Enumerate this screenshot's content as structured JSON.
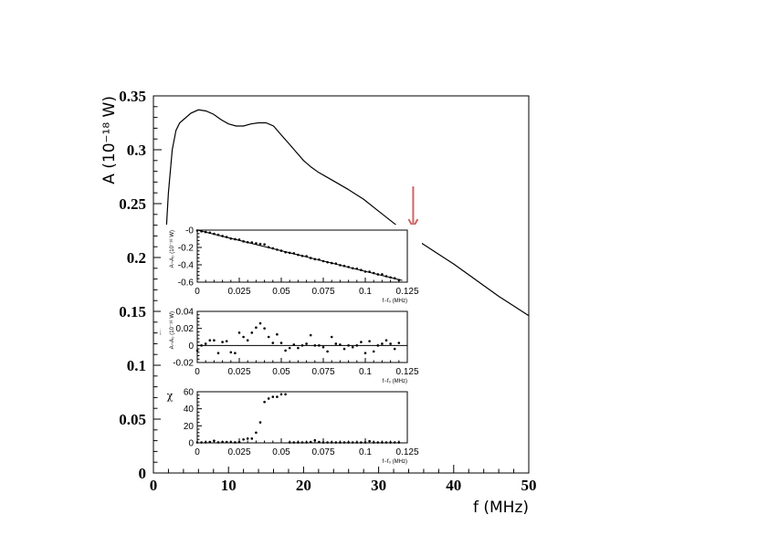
{
  "chart_data": [
    {
      "id": "main",
      "type": "line",
      "xlabel": "f (MHz)",
      "ylabel": "A (10⁻¹⁸ W)",
      "xlim": [
        0,
        50
      ],
      "ylim": [
        0,
        0.35
      ],
      "xticks": [
        0,
        10,
        20,
        30,
        40,
        50
      ],
      "xtick_labels": [
        "0",
        "10",
        "20",
        "30",
        "40",
        "50"
      ],
      "yticks": [
        0,
        0.05,
        0.1,
        0.15,
        0.2,
        0.25,
        0.3,
        0.35
      ],
      "ytick_labels": [
        "0",
        "0.05",
        "0.1",
        "0.15",
        "0.2",
        "0.25",
        "0.3",
        "0.35"
      ],
      "grid": false,
      "series": [
        {
          "color": "#000000",
          "x": [
            1.0,
            1.5,
            2.0,
            2.5,
            3.0,
            3.5,
            4.0,
            5.0,
            6.0,
            7.0,
            8.0,
            9.0,
            10.0,
            11.0,
            12.0,
            13.0,
            14.0,
            15.0,
            16.0,
            17.0,
            18.0,
            19.0,
            20.0,
            21.0,
            22.0,
            24.0,
            26.0,
            28.0,
            30.0,
            32.0,
            34.0,
            36.0,
            38.0,
            40.0,
            42.0,
            44.0,
            46.0,
            48.0,
            50.0
          ],
          "y": [
            0.128,
            0.2,
            0.26,
            0.3,
            0.318,
            0.325,
            0.328,
            0.334,
            0.337,
            0.336,
            0.333,
            0.328,
            0.324,
            0.322,
            0.322,
            0.324,
            0.325,
            0.325,
            0.322,
            0.314,
            0.306,
            0.298,
            0.29,
            0.284,
            0.279,
            0.271,
            0.263,
            0.254,
            0.243,
            0.232,
            0.221,
            0.212,
            0.203,
            0.194,
            0.184,
            0.174,
            0.164,
            0.155,
            0.146
          ]
        }
      ],
      "annotations": [
        {
          "type": "arrow",
          "color": "#cc6666",
          "x": 34.6,
          "y_head": 0.228,
          "y_tail": 0.266
        }
      ]
    },
    {
      "id": "inset1",
      "type": "scatter",
      "xlabel": "f−f₀ (MHz)",
      "ylabel": "A−A₀ (10⁻¹⁸ W)",
      "xlim": [
        0,
        0.125
      ],
      "ylim": [
        -0.6,
        0
      ],
      "xticks": [
        0,
        0.025,
        0.05,
        0.075,
        0.1,
        0.125
      ],
      "xtick_labels": [
        "0",
        "0.025",
        "0.05",
        "0.075",
        "0.1",
        "0.125"
      ],
      "yticks": [
        -0.6,
        -0.4,
        -0.2,
        0
      ],
      "ytick_labels": [
        "-0.6",
        "-0.4",
        "-0.2",
        "-0"
      ],
      "fit_line": {
        "x": [
          0,
          0.122
        ],
        "y": [
          0,
          -0.58
        ]
      },
      "series": [
        {
          "x": [
            0.0,
            0.0025,
            0.005,
            0.0075,
            0.01,
            0.0125,
            0.015,
            0.0175,
            0.02,
            0.0225,
            0.025,
            0.0275,
            0.03,
            0.0325,
            0.035,
            0.0375,
            0.04,
            0.0425,
            0.045,
            0.0475,
            0.05,
            0.0525,
            0.055,
            0.0575,
            0.06,
            0.0625,
            0.065,
            0.0675,
            0.07,
            0.0725,
            0.075,
            0.0775,
            0.08,
            0.0825,
            0.085,
            0.0875,
            0.09,
            0.0925,
            0.095,
            0.0975,
            0.1,
            0.1025,
            0.105,
            0.1075,
            0.11,
            0.1125,
            0.115,
            0.1175,
            0.12
          ],
          "y": [
            -0.004,
            -0.014,
            -0.022,
            -0.03,
            -0.043,
            -0.055,
            -0.068,
            -0.08,
            -0.098,
            -0.105,
            -0.11,
            -0.13,
            -0.14,
            -0.142,
            -0.152,
            -0.16,
            -0.165,
            -0.197,
            -0.21,
            -0.225,
            -0.238,
            -0.255,
            -0.262,
            -0.268,
            -0.285,
            -0.297,
            -0.3,
            -0.322,
            -0.335,
            -0.34,
            -0.358,
            -0.37,
            -0.38,
            -0.386,
            -0.404,
            -0.413,
            -0.425,
            -0.44,
            -0.445,
            -0.46,
            -0.478,
            -0.48,
            -0.495,
            -0.51,
            -0.51,
            -0.532,
            -0.545,
            -0.555,
            -0.575
          ]
        }
      ]
    },
    {
      "id": "inset2",
      "type": "scatter",
      "xlabel": "f−f₀ (MHz)",
      "ylabel": "A−A₀ (10⁻¹⁸ W)",
      "xlim": [
        0,
        0.125
      ],
      "ylim": [
        -0.02,
        0.04
      ],
      "xticks": [
        0,
        0.025,
        0.05,
        0.075,
        0.1,
        0.125
      ],
      "xtick_labels": [
        "0",
        "0.025",
        "0.05",
        "0.075",
        "0.1",
        "0.125"
      ],
      "yticks": [
        -0.02,
        0,
        0.02,
        0.04
      ],
      "ytick_labels": [
        "-0.02",
        "0",
        "0.02",
        "0.04"
      ],
      "zero_line": true,
      "series": [
        {
          "x": [
            0.0,
            0.0025,
            0.005,
            0.0075,
            0.01,
            0.0125,
            0.015,
            0.0175,
            0.02,
            0.0225,
            0.025,
            0.0275,
            0.03,
            0.0325,
            0.035,
            0.0375,
            0.04,
            0.0425,
            0.045,
            0.0475,
            0.05,
            0.0525,
            0.055,
            0.0575,
            0.06,
            0.0625,
            0.065,
            0.0675,
            0.07,
            0.0725,
            0.075,
            0.0775,
            0.08,
            0.0825,
            0.085,
            0.0875,
            0.09,
            0.0925,
            0.095,
            0.0975,
            0.1,
            0.1025,
            0.105,
            0.1075,
            0.11,
            0.1125,
            0.115,
            0.1175,
            0.12
          ],
          "y": [
            -0.006,
            0.0,
            0.002,
            0.006,
            0.006,
            -0.009,
            0.004,
            0.005,
            -0.008,
            -0.009,
            0.015,
            0.01,
            0.006,
            0.015,
            0.021,
            0.026,
            0.02,
            0.01,
            0.003,
            0.013,
            0.003,
            -0.006,
            -0.003,
            0.001,
            -0.003,
            0.0,
            0.002,
            0.012,
            0.0,
            0.0,
            -0.002,
            -0.007,
            0.01,
            0.002,
            0.001,
            -0.004,
            0.0,
            -0.002,
            0.0,
            0.004,
            -0.009,
            0.005,
            -0.007,
            0.0,
            0.002,
            0.006,
            0.002,
            -0.004,
            0.003
          ]
        }
      ]
    },
    {
      "id": "inset3",
      "type": "scatter",
      "xlabel": "f−f₀ (MHz)",
      "ylabel": "χ",
      "xlim": [
        0,
        0.125
      ],
      "ylim": [
        0,
        60
      ],
      "xticks": [
        0,
        0.025,
        0.05,
        0.075,
        0.1,
        0.125
      ],
      "xtick_labels": [
        "0",
        "0.025",
        "0.05",
        "0.075",
        "0.1",
        "0.125"
      ],
      "yticks": [
        0,
        20,
        40,
        60
      ],
      "ytick_labels": [
        "0",
        "20",
        "40",
        "60"
      ],
      "series": [
        {
          "x": [
            0.0,
            0.0025,
            0.005,
            0.0075,
            0.01,
            0.0125,
            0.015,
            0.0175,
            0.02,
            0.0225,
            0.025,
            0.0275,
            0.03,
            0.0325,
            0.035,
            0.0375,
            0.04,
            0.0425,
            0.045,
            0.0475,
            0.05,
            0.0525,
            0.055,
            0.0575,
            0.06,
            0.0625,
            0.065,
            0.0675,
            0.07,
            0.0725,
            0.075,
            0.0775,
            0.08,
            0.0825,
            0.085,
            0.0875,
            0.09,
            0.0925,
            0.095,
            0.0975,
            0.1,
            0.1025,
            0.105,
            0.1075,
            0.11,
            0.1125,
            0.115,
            0.1175,
            0.12
          ],
          "y": [
            0.5,
            0.5,
            0.6,
            1.0,
            2.5,
            0.6,
            1.0,
            1.0,
            0.8,
            0.6,
            1.0,
            4.0,
            5.0,
            5.0,
            12.0,
            24.0,
            48.0,
            52.0,
            54.0,
            54.0,
            57.0,
            57.0,
            0.5,
            0.5,
            0.5,
            0.5,
            0.5,
            1.0,
            3.0,
            1.0,
            0.5,
            0.5,
            0.5,
            0.5,
            0.5,
            0.5,
            0.5,
            0.5,
            0.5,
            0.5,
            0.5,
            2.0,
            0.5,
            0.5,
            0.5,
            0.5,
            0.5,
            0.5,
            0.5
          ]
        }
      ]
    }
  ]
}
